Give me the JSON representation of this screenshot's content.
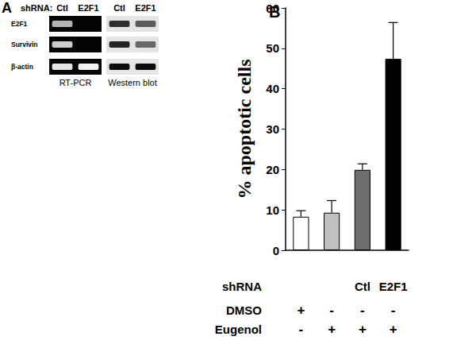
{
  "panel_a": {
    "label": "A",
    "lane_title": "shRNA:",
    "targets": [
      "E2F1",
      "Survivin",
      "β-actin"
    ],
    "blots": [
      {
        "title": "RT-PCR",
        "style": "gel",
        "lanes": [
          "Ctl",
          "E2F1"
        ],
        "bands": [
          [
            0.7,
            0
          ],
          [
            0.8,
            0
          ],
          [
            0.9,
            0.95
          ]
        ]
      },
      {
        "title": "Western blot",
        "style": "film",
        "lanes": [
          "Ctl",
          "E2F1"
        ],
        "bands": [
          [
            0.8,
            0.6
          ],
          [
            0.85,
            0.55
          ],
          [
            0.95,
            0.95
          ]
        ]
      }
    ]
  },
  "chart_data": {
    "type": "bar",
    "title": "B",
    "ylabel": "% apoptotic cells",
    "xlabel": "shRNA",
    "categories": [
      null,
      null,
      "Ctl",
      "E2F1"
    ],
    "treatment_rows": [
      {
        "label": "DMSO",
        "values": [
          "+",
          "-",
          "-",
          "-"
        ]
      },
      {
        "label": "Eugenol",
        "values": [
          "-",
          "+",
          "+",
          "+"
        ]
      }
    ],
    "values": [
      8.3,
      9.3,
      19.9,
      47.4
    ],
    "errors": [
      1.5,
      3.0,
      1.5,
      9.0
    ],
    "colors": [
      "#ffffff",
      "#c0c0c0",
      "#6e6e6e",
      "#000000"
    ],
    "ylim": [
      0,
      60
    ],
    "yticks": [
      0,
      10,
      20,
      30,
      40,
      50,
      60
    ],
    "grid": false
  }
}
